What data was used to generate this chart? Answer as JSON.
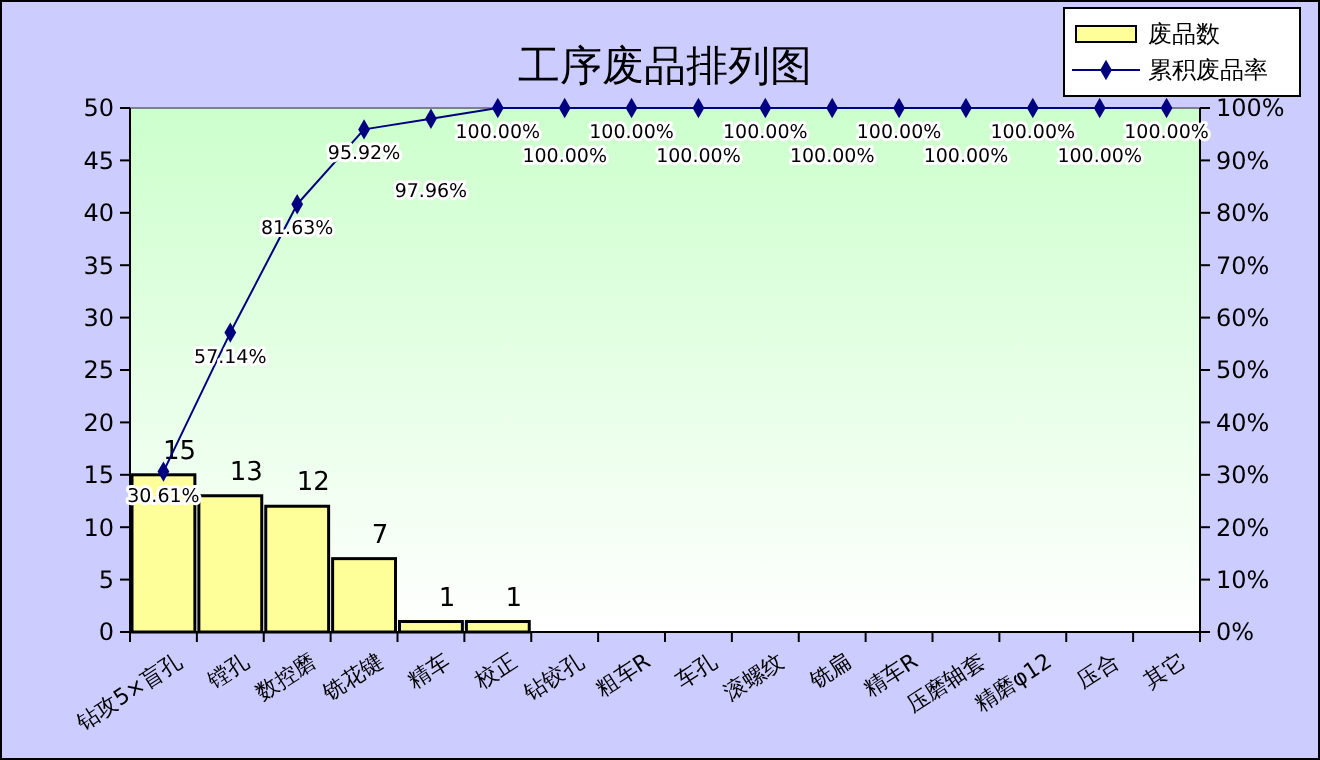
{
  "chart_data": {
    "type": "bar",
    "title": "工序废品排列图",
    "categories": [
      "钻攻5×盲孔",
      "镗孔",
      "数控磨",
      "铣花键",
      "精车",
      "校正",
      "钻铰孔",
      "粗车R",
      "车孔",
      "滚螺纹",
      "铣扁",
      "精车R",
      "压磨轴套",
      "精磨φ12",
      "压合",
      "其它"
    ],
    "series": [
      {
        "name": "废品数",
        "color": "#ffff99",
        "values": [
          15,
          13,
          12,
          7,
          1,
          1,
          0,
          0,
          0,
          0,
          0,
          0,
          0,
          0,
          0,
          0
        ],
        "value_labels": [
          "15",
          "13",
          "12",
          "7",
          "1",
          "1",
          null,
          null,
          null,
          null,
          null,
          null,
          null,
          null,
          null,
          null
        ]
      },
      {
        "name": "累积废品率",
        "type": "line",
        "axis": "y2",
        "color": "#000080",
        "marker": "diamond",
        "values": [
          30.61,
          57.14,
          81.63,
          95.92,
          97.96,
          100,
          100,
          100,
          100,
          100,
          100,
          100,
          100,
          100,
          100,
          100
        ],
        "value_labels": [
          "30.61%",
          "57.14%",
          "81.63%",
          "95.92%",
          "97.96%",
          "100.00%",
          "100.00%",
          "100.00%",
          "100.00%",
          "100.00%",
          "100.00%",
          "100.00%",
          "100.00%",
          "100.00%",
          "100.00%",
          "100.00%"
        ]
      }
    ],
    "ylim": [
      0,
      50
    ],
    "yticks": [
      0,
      5,
      10,
      15,
      20,
      25,
      30,
      35,
      40,
      45,
      50
    ],
    "y2lim": [
      0,
      100
    ],
    "y2ticks": [
      {
        "value": 0,
        "label": "0%"
      },
      {
        "value": 10,
        "label": "10%"
      },
      {
        "value": 20,
        "label": "20%"
      },
      {
        "value": 30,
        "label": "30%"
      },
      {
        "value": 40,
        "label": "40%"
      },
      {
        "value": 50,
        "label": "50%"
      },
      {
        "value": 60,
        "label": "60%"
      },
      {
        "value": 70,
        "label": "70%"
      },
      {
        "value": 80,
        "label": "80%"
      },
      {
        "value": 90,
        "label": "90%"
      },
      {
        "value": 100,
        "label": "100%"
      }
    ],
    "grid": false,
    "legend": "top right"
  }
}
